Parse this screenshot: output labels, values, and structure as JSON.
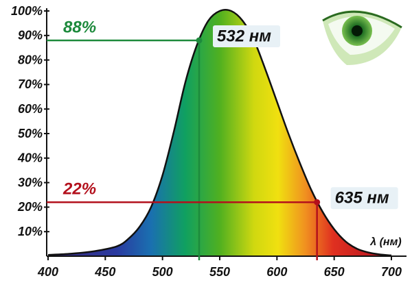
{
  "chart_data": {
    "type": "area",
    "x_label": "λ (нм)",
    "x": [
      400,
      420,
      440,
      460,
      470,
      480,
      490,
      500,
      510,
      520,
      530,
      540,
      550,
      560,
      570,
      580,
      590,
      600,
      610,
      620,
      630,
      640,
      650,
      660,
      670,
      680,
      690,
      700
    ],
    "series": [
      {
        "color": "#111111",
        "values": [
          0.5,
          1,
          2,
          4,
          7,
          12,
          20,
          33,
          51,
          71,
          86,
          96,
          100,
          100,
          96,
          88,
          76,
          63,
          50,
          38,
          27,
          18,
          11,
          6,
          3,
          1.5,
          0.7,
          0.3
        ]
      }
    ],
    "xlim": [
      400,
      700
    ],
    "ylim": [
      0,
      100
    ],
    "xticks": [
      400,
      450,
      500,
      550,
      600,
      650,
      700
    ],
    "yticks": [
      {
        "value": 10,
        "label": "10%"
      },
      {
        "value": 20,
        "label": "20%"
      },
      {
        "value": 30,
        "label": "30%"
      },
      {
        "value": 40,
        "label": "40%"
      },
      {
        "value": 50,
        "label": "50%"
      },
      {
        "value": 60,
        "label": "60%"
      },
      {
        "value": 70,
        "label": "70%"
      },
      {
        "value": 80,
        "label": "80%"
      },
      {
        "value": 90,
        "label": "90%"
      },
      {
        "value": 100,
        "label": "100%"
      }
    ],
    "markers": [
      {
        "x": 532,
        "y": 88,
        "y_label": "88%",
        "x_label": "532 нм",
        "color": "#1d8a3c"
      },
      {
        "x": 635,
        "y": 22,
        "y_label": "22%",
        "x_label": "635 нм",
        "color": "#b3101c"
      }
    ]
  }
}
